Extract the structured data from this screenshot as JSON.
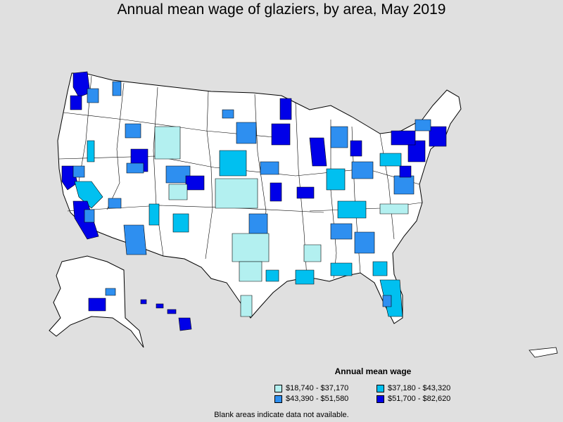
{
  "title": "Annual mean wage of glaziers, by area, May 2019",
  "legend": {
    "title": "Annual mean wage",
    "items": [
      {
        "label": "$18,740 - $37,170",
        "color": "#b3f0f0"
      },
      {
        "label": "$37,180 - $43,320",
        "color": "#00c0f0"
      },
      {
        "label": "$43,390 - $51,580",
        "color": "#2e8ff0"
      },
      {
        "label": "$51,700 - $82,620",
        "color": "#0000e8"
      }
    ]
  },
  "note": "Blank areas indicate data not available.",
  "colors": {
    "background": "#e0e0e0",
    "no_data": "#ffffff",
    "border": "#000000"
  }
}
